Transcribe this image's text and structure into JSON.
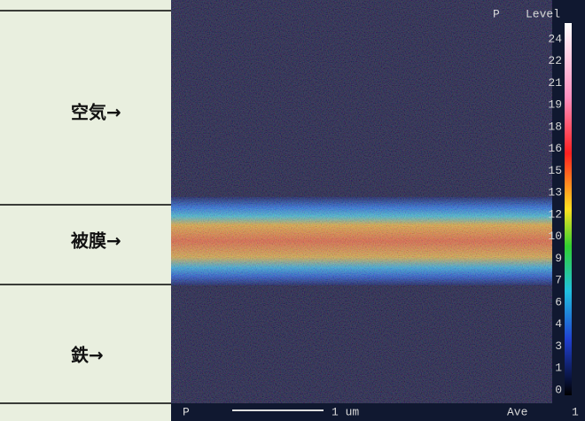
{
  "labels": [
    "空気→",
    "被膜→",
    "鉄→"
  ],
  "image": {
    "element": "P",
    "level_title": "Level",
    "level_scale": [
      24,
      22,
      21,
      19,
      18,
      16,
      15,
      13,
      12,
      10,
      9,
      7,
      6,
      4,
      3,
      1,
      0
    ],
    "footer": {
      "element": "P",
      "scale_bar": "1 um",
      "mode": "Ave",
      "count": "1"
    }
  }
}
